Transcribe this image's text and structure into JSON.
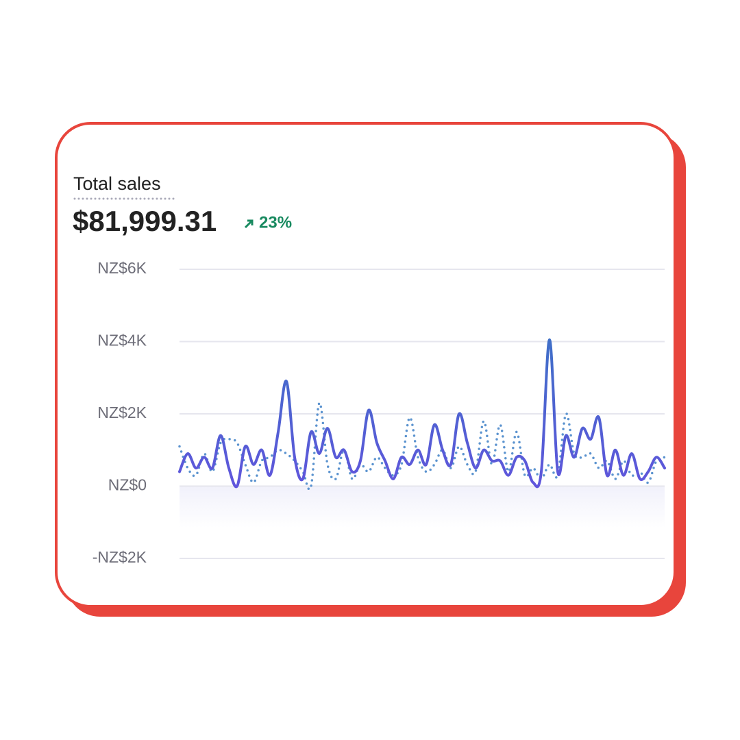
{
  "chart_data": {
    "type": "line",
    "title": "Total sales",
    "total": {
      "value": 81999.31,
      "label": "$81,999.31"
    },
    "change": {
      "value": 23,
      "label": "23%"
    },
    "categories": [
      null,
      null,
      null,
      null,
      null,
      null,
      null,
      null,
      null,
      null,
      null,
      null,
      null,
      null,
      null,
      null,
      null,
      null,
      null,
      null,
      null,
      null,
      null,
      null,
      null,
      null,
      null,
      null,
      null,
      null,
      null,
      null,
      null,
      null,
      null,
      null,
      null,
      null,
      null,
      null,
      null,
      null,
      null,
      null,
      null,
      null,
      null,
      null,
      null,
      null,
      null,
      null,
      null,
      null,
      null,
      null,
      null,
      null,
      null,
      null
    ],
    "series": [
      {
        "color": "#5b5fd8",
        "style": "solid",
        "values": [
          400,
          900,
          500,
          800,
          500,
          1400,
          500,
          0,
          1100,
          600,
          1000,
          300,
          1500,
          2900,
          800,
          200,
          1500,
          900,
          1600,
          800,
          1000,
          400,
          700,
          2100,
          1200,
          700,
          200,
          800,
          600,
          1000,
          600,
          1700,
          1000,
          600,
          2000,
          1200,
          500,
          1000,
          700,
          700,
          300,
          800,
          700,
          100,
          400,
          4050,
          400,
          1400,
          800,
          1600,
          1300,
          1900,
          300,
          1000,
          300,
          900,
          200,
          400,
          800,
          500
        ]
      },
      {
        "color": "#5b93cf",
        "style": "dotted",
        "values": [
          1100,
          500,
          300,
          900,
          400,
          1200,
          1300,
          1200,
          600,
          100,
          700,
          800,
          1000,
          900,
          700,
          400,
          0,
          2300,
          600,
          200,
          1000,
          200,
          600,
          400,
          800,
          500,
          300,
          600,
          1900,
          800,
          400,
          600,
          1000,
          500,
          1100,
          600,
          400,
          1800,
          600,
          1700,
          400,
          1500,
          300,
          500,
          200,
          600,
          300,
          2000,
          900,
          800,
          900,
          500,
          700,
          200,
          700,
          300,
          400,
          100,
          700,
          800
        ]
      }
    ],
    "ylim": [
      -2000,
      6000
    ],
    "yticks": [
      {
        "value": -2000,
        "label": "-NZ$2K"
      },
      {
        "value": 0,
        "label": "NZ$0"
      },
      {
        "value": 2000,
        "label": "NZ$2K"
      },
      {
        "value": 4000,
        "label": "NZ$4K"
      },
      {
        "value": 6000,
        "label": "NZ$6K"
      }
    ],
    "grid": true
  }
}
